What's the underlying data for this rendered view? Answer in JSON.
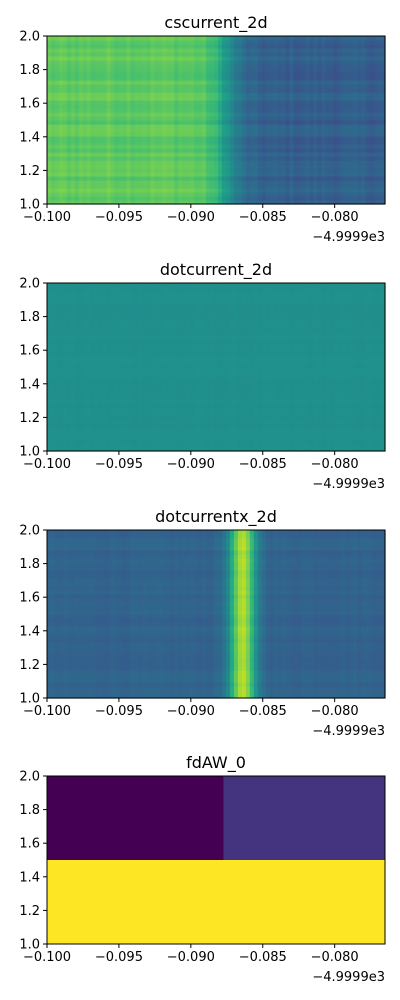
{
  "chart_data": [
    {
      "type": "heatmap",
      "title": "cscurrent_2d",
      "xlim": [
        -0.1,
        -0.0765
      ],
      "ylim": [
        1.0,
        2.0
      ],
      "xticks": [
        "−0.100",
        "−0.095",
        "−0.090",
        "−0.085",
        "−0.080"
      ],
      "xtick_values": [
        -0.1,
        -0.095,
        -0.09,
        -0.085,
        -0.08
      ],
      "yticks": [
        "1.0",
        "1.2",
        "1.4",
        "1.6",
        "1.8",
        "2.0"
      ],
      "ytick_values": [
        1.0,
        1.2,
        1.4,
        1.6,
        1.8,
        2.0
      ],
      "offset_text": "−4.9999e3",
      "colormap": "viridis",
      "pattern": "step",
      "step_x": -0.0875,
      "left_level": 0.75,
      "right_level": 0.3,
      "noise": 0.08
    },
    {
      "type": "heatmap",
      "title": "dotcurrent_2d",
      "xlim": [
        -0.1,
        -0.0765
      ],
      "ylim": [
        1.0,
        2.0
      ],
      "xticks": [
        "−0.100",
        "−0.095",
        "−0.090",
        "−0.085",
        "−0.080"
      ],
      "xtick_values": [
        -0.1,
        -0.095,
        -0.09,
        -0.085,
        -0.08
      ],
      "yticks": [
        "1.0",
        "1.2",
        "1.4",
        "1.6",
        "1.8",
        "2.0"
      ],
      "ytick_values": [
        1.0,
        1.2,
        1.4,
        1.6,
        1.8,
        2.0
      ],
      "offset_text": "−4.9999e3",
      "colormap": "viridis",
      "pattern": "uniform",
      "level": 0.5,
      "noise": 0.015
    },
    {
      "type": "heatmap",
      "title": "dotcurrentx_2d",
      "xlim": [
        -0.1,
        -0.0765
      ],
      "ylim": [
        1.0,
        2.0
      ],
      "xticks": [
        "−0.100",
        "−0.095",
        "−0.090",
        "−0.085",
        "−0.080"
      ],
      "xtick_values": [
        -0.1,
        -0.095,
        -0.09,
        -0.085,
        -0.08
      ],
      "yticks": [
        "1.0",
        "1.2",
        "1.4",
        "1.6",
        "1.8",
        "2.0"
      ],
      "ytick_values": [
        1.0,
        1.2,
        1.4,
        1.6,
        1.8,
        2.0
      ],
      "offset_text": "−4.9999e3",
      "colormap": "viridis",
      "pattern": "peak",
      "peak_x": -0.0864,
      "peak_width": 0.0009,
      "base_level": 0.32,
      "peak_level": 0.88,
      "noise": 0.04
    },
    {
      "type": "heatmap",
      "title": "fdAW_0",
      "xlim": [
        -0.1,
        -0.0765
      ],
      "ylim": [
        1.0,
        2.0
      ],
      "xticks": [
        "−0.100",
        "−0.095",
        "−0.090",
        "−0.085",
        "−0.080"
      ],
      "xtick_values": [
        -0.1,
        -0.095,
        -0.09,
        -0.085,
        -0.08
      ],
      "yticks": [
        "1.0",
        "1.2",
        "1.4",
        "1.6",
        "1.8",
        "2.0"
      ],
      "ytick_values": [
        1.0,
        1.2,
        1.4,
        1.6,
        1.8,
        2.0
      ],
      "offset_text": "−4.9999e3",
      "colormap": "viridis",
      "pattern": "blocks",
      "blocks": [
        {
          "x": [
            -0.1,
            -0.0877
          ],
          "y": [
            1.5,
            2.0
          ],
          "level": 0.0
        },
        {
          "x": [
            -0.0877,
            -0.0765
          ],
          "y": [
            1.5,
            2.0
          ],
          "level": 0.15
        },
        {
          "x": [
            -0.1,
            -0.0765
          ],
          "y": [
            1.0,
            1.5
          ],
          "level": 1.0
        }
      ]
    }
  ]
}
